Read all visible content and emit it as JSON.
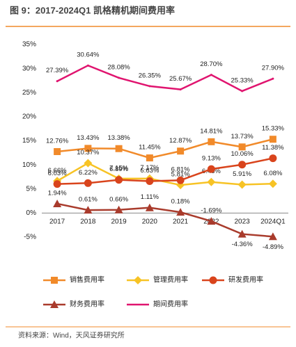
{
  "chart_data": {
    "type": "line",
    "title": "图 9：2017-2024Q1 凯格精机期间费用率",
    "source": "资料来源：Wind，天风证券研究所",
    "categories": [
      "2017",
      "2018",
      "2019",
      "2020",
      "2021",
      "2022",
      "2023",
      "2024Q1"
    ],
    "ylim": [
      -5,
      35
    ],
    "yticks": [
      {
        "value": -5,
        "label": "-5%"
      },
      {
        "value": 0,
        "label": "0%"
      },
      {
        "value": 5,
        "label": "5%"
      },
      {
        "value": 10,
        "label": "10%"
      },
      {
        "value": 15,
        "label": "15%"
      },
      {
        "value": 20,
        "label": "20%"
      },
      {
        "value": 25,
        "label": "25%"
      },
      {
        "value": 30,
        "label": "30%"
      },
      {
        "value": 35,
        "label": "35%"
      }
    ],
    "series": [
      {
        "name": "销售费用率",
        "color": "#f18a2a",
        "marker": "square",
        "values": [
          12.76,
          13.43,
          13.38,
          11.45,
          12.87,
          14.81,
          13.73,
          15.33
        ],
        "value_labels": [
          "12.76%",
          "13.43%",
          "13.38%",
          "11.45%",
          "12.87%",
          "14.81%",
          "13.73%",
          "15.33%"
        ]
      },
      {
        "name": "管理费用率",
        "color": "#f7c325",
        "marker": "diamond",
        "values": [
          6.66,
          10.37,
          7.15,
          7.17,
          5.81,
          6.45,
          5.91,
          6.08
        ],
        "value_labels": [
          "6.66%",
          "10.37%",
          "7.15%",
          "7.17%",
          "5.81%",
          "6.45%",
          "5.91%",
          "6.08%"
        ]
      },
      {
        "name": "研发费用率",
        "color": "#d9441c",
        "marker": "circle",
        "values": [
          6.03,
          6.22,
          6.89,
          6.63,
          6.81,
          9.13,
          10.06,
          11.38
        ],
        "value_labels": [
          "6.03%",
          "6.22%",
          "6.89%",
          "6.63%",
          "6.81%",
          "9.13%",
          "10.06%",
          "11.38%"
        ]
      },
      {
        "name": "财务费用率",
        "color": "#a93b2c",
        "marker": "triangle",
        "values": [
          1.94,
          0.61,
          0.66,
          1.11,
          0.18,
          -1.69,
          -4.36,
          -4.89
        ],
        "value_labels": [
          "1.94%",
          "0.61%",
          "0.66%",
          "1.11%",
          "0.18%",
          "-1.69%",
          "-4.36%",
          "-4.89%"
        ]
      },
      {
        "name": "期间费用率",
        "color": "#e0146f",
        "marker": "none",
        "values": [
          27.39,
          30.64,
          28.08,
          26.35,
          25.67,
          28.7,
          25.33,
          27.9
        ],
        "value_labels": [
          "27.39%",
          "30.64%",
          "28.08%",
          "26.35%",
          "25.67%",
          "28.70%",
          "25.33%",
          "27.90%"
        ]
      }
    ]
  }
}
